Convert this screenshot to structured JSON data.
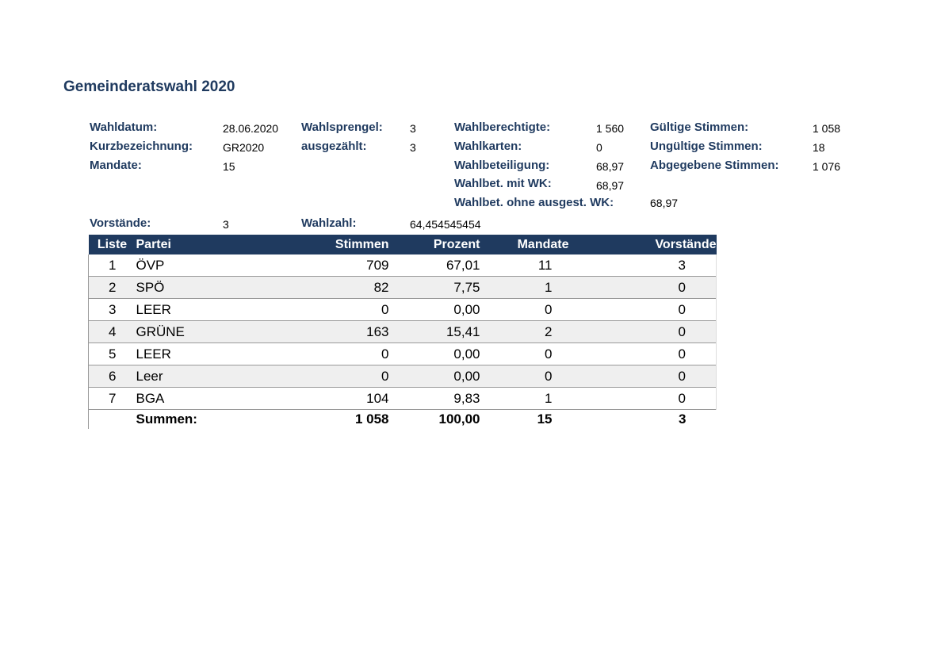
{
  "title": "Gemeinderatswahl 2020",
  "info": {
    "wahldatum_label": "Wahldatum:",
    "wahldatum": "28.06.2020",
    "kurz_label": "Kurzbezeichnung:",
    "kurz": "GR2020",
    "mandate_label": "Mandate:",
    "mandate": "15",
    "sprengel_label": "Wahlsprengel:",
    "sprengel": "3",
    "ausgezaehlt_label": "ausgezählt:",
    "ausgezaehlt": "3",
    "berechtigte_label": "Wahlberechtigte:",
    "berechtigte": "1 560",
    "wahlkarten_label": "Wahlkarten:",
    "wahlkarten": "0",
    "beteiligung_label": "Wahlbeteiligung:",
    "beteiligung": "68,97",
    "mitwk_label": "Wahlbet. mit WK:",
    "mitwk": "68,97",
    "ohnewk_label": "Wahlbet. ohne ausgest. WK:",
    "ohnewk": "68,97",
    "gueltig_label": "Gültige Stimmen:",
    "gueltig": "1 058",
    "ungueltig_label": "Ungültige Stimmen:",
    "ungueltig": "18",
    "abgegeben_label": "Abgegebene Stimmen:",
    "abgegeben": "1 076",
    "vorstaende_label": "Vorstände:",
    "vorstaende": "3",
    "wahlzahl_label": "Wahlzahl:",
    "wahlzahl": "64,454545454"
  },
  "table": {
    "headers": [
      "Liste",
      "Partei",
      "Stimmen",
      "Prozent",
      "Mandate",
      "Vorstände"
    ],
    "rows": [
      [
        "1",
        "ÖVP",
        "709",
        "67,01",
        "11",
        "3"
      ],
      [
        "2",
        "SPÖ",
        "82",
        "7,75",
        "1",
        "0"
      ],
      [
        "3",
        "LEER",
        "0",
        "0,00",
        "0",
        "0"
      ],
      [
        "4",
        "GRÜNE",
        "163",
        "15,41",
        "2",
        "0"
      ],
      [
        "5",
        "LEER",
        "0",
        "0,00",
        "0",
        "0"
      ],
      [
        "6",
        "Leer",
        "0",
        "0,00",
        "0",
        "0"
      ],
      [
        "7",
        "BGA",
        "104",
        "9,83",
        "1",
        "0"
      ]
    ],
    "summen": [
      "",
      "Summen:",
      "1 058",
      "100,00",
      "15",
      "3"
    ]
  },
  "colors": {
    "header_bg": "#1f3a5f",
    "label_text": "#1f3a5f",
    "alt_row": "#efefef"
  }
}
